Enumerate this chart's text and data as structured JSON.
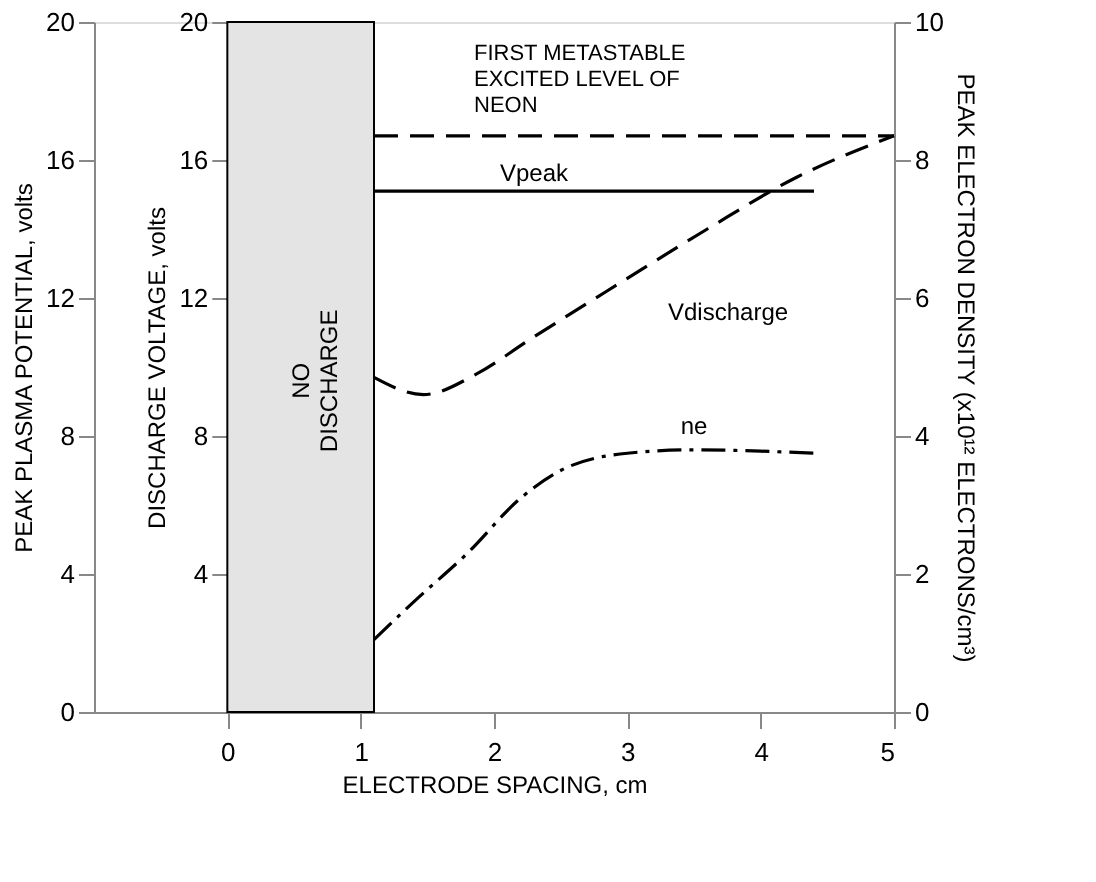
{
  "chart_data": {
    "type": "line",
    "xlabel": "ELECTRODE SPACING, cm",
    "ylabel": "PEAK PLASMA POTENTIAL, volts",
    "y2label": "PEAK ELECTRON DENSITY (x10¹² ELECTRONS/cm³)",
    "y3label": "DISCHARGE VOLTAGE, volts",
    "xlim": [
      -1,
      5
    ],
    "xticks": [
      0,
      1,
      2,
      3,
      4,
      5
    ],
    "ylim": [
      0,
      20
    ],
    "yticks": [
      0,
      4,
      8,
      12,
      16,
      20
    ],
    "y2lim": [
      0,
      10
    ],
    "y2ticks": [
      0,
      2,
      4,
      6,
      8,
      10
    ],
    "y3lim": [
      0,
      20
    ],
    "y3ticks": [
      4,
      8,
      12,
      16,
      20
    ],
    "grid": false,
    "marker": "none",
    "bands": [
      {
        "axis": "x",
        "from": 0,
        "to": 1.1,
        "label": "NO\nDISCHARGE",
        "color": "#e4e4e4"
      }
    ],
    "annotations": [
      {
        "text": "FIRST METASTABLE\nEXCITED LEVEL OF\nNEON",
        "x": 2.9,
        "y": 16.7
      }
    ],
    "series": [
      {
        "color": "#000000",
        "line_style": "dashed",
        "axis": "y",
        "x": [
          1.1,
          5.0
        ],
        "values": [
          16.7,
          16.7
        ]
      },
      {
        "name": "Vpeak",
        "color": "#000000",
        "line_style": "solid",
        "axis": "y",
        "x": [
          1.1,
          2.3,
          4.4
        ],
        "values": [
          15.1,
          15.1,
          15.1
        ]
      },
      {
        "name": "Vdischarge",
        "color": "#000000",
        "line_style": "dashed",
        "axis": "y3",
        "x": [
          1.1,
          1.47,
          1.87,
          2.27,
          2.93,
          3.6,
          4.27,
          5.0
        ],
        "values": [
          9.7,
          9.2,
          9.8,
          10.8,
          12.4,
          14.0,
          15.5,
          16.7
        ]
      },
      {
        "name": "ne",
        "color": "#000000",
        "line_style": "dotted",
        "axis": "y2",
        "x": [
          1.1,
          1.4,
          1.8,
          2.2,
          2.5,
          3.0,
          3.5,
          4.0,
          4.4
        ],
        "values": [
          1.05,
          1.6,
          2.3,
          3.1,
          3.5,
          3.75,
          3.8,
          3.78,
          3.75
        ]
      }
    ]
  }
}
